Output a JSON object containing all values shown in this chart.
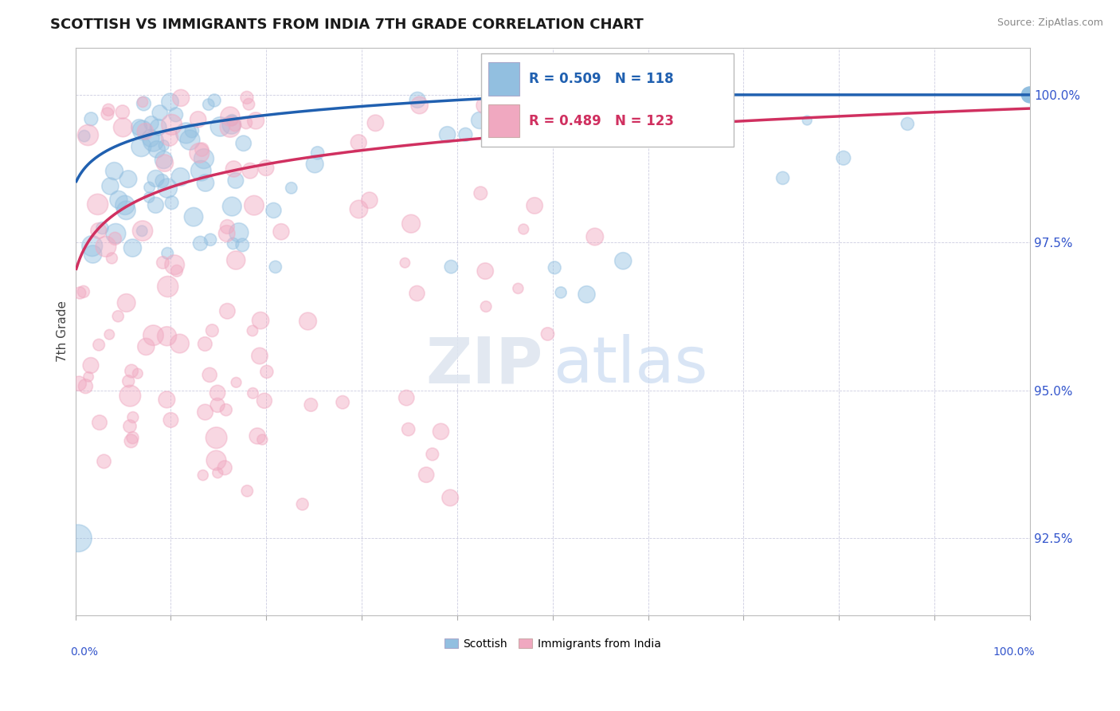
{
  "title": "SCOTTISH VS IMMIGRANTS FROM INDIA 7TH GRADE CORRELATION CHART",
  "source": "Source: ZipAtlas.com",
  "ylabel": "7th Grade",
  "yticks": [
    92.5,
    95.0,
    97.5,
    100.0
  ],
  "ytick_labels": [
    "92.5%",
    "95.0%",
    "97.5%",
    "100.0%"
  ],
  "xmin": 0.0,
  "xmax": 100.0,
  "ymin": 91.2,
  "ymax": 100.8,
  "legend_scottish_R": "0.509",
  "legend_scottish_N": "118",
  "legend_india_R": "0.489",
  "legend_india_N": "123",
  "scottish_color": "#92bfe0",
  "india_color": "#f0a8c0",
  "scottish_line_color": "#2060b0",
  "india_line_color": "#d03060",
  "watermark_zip": "ZIP",
  "watermark_atlas": "atlas",
  "background_color": "#ffffff"
}
